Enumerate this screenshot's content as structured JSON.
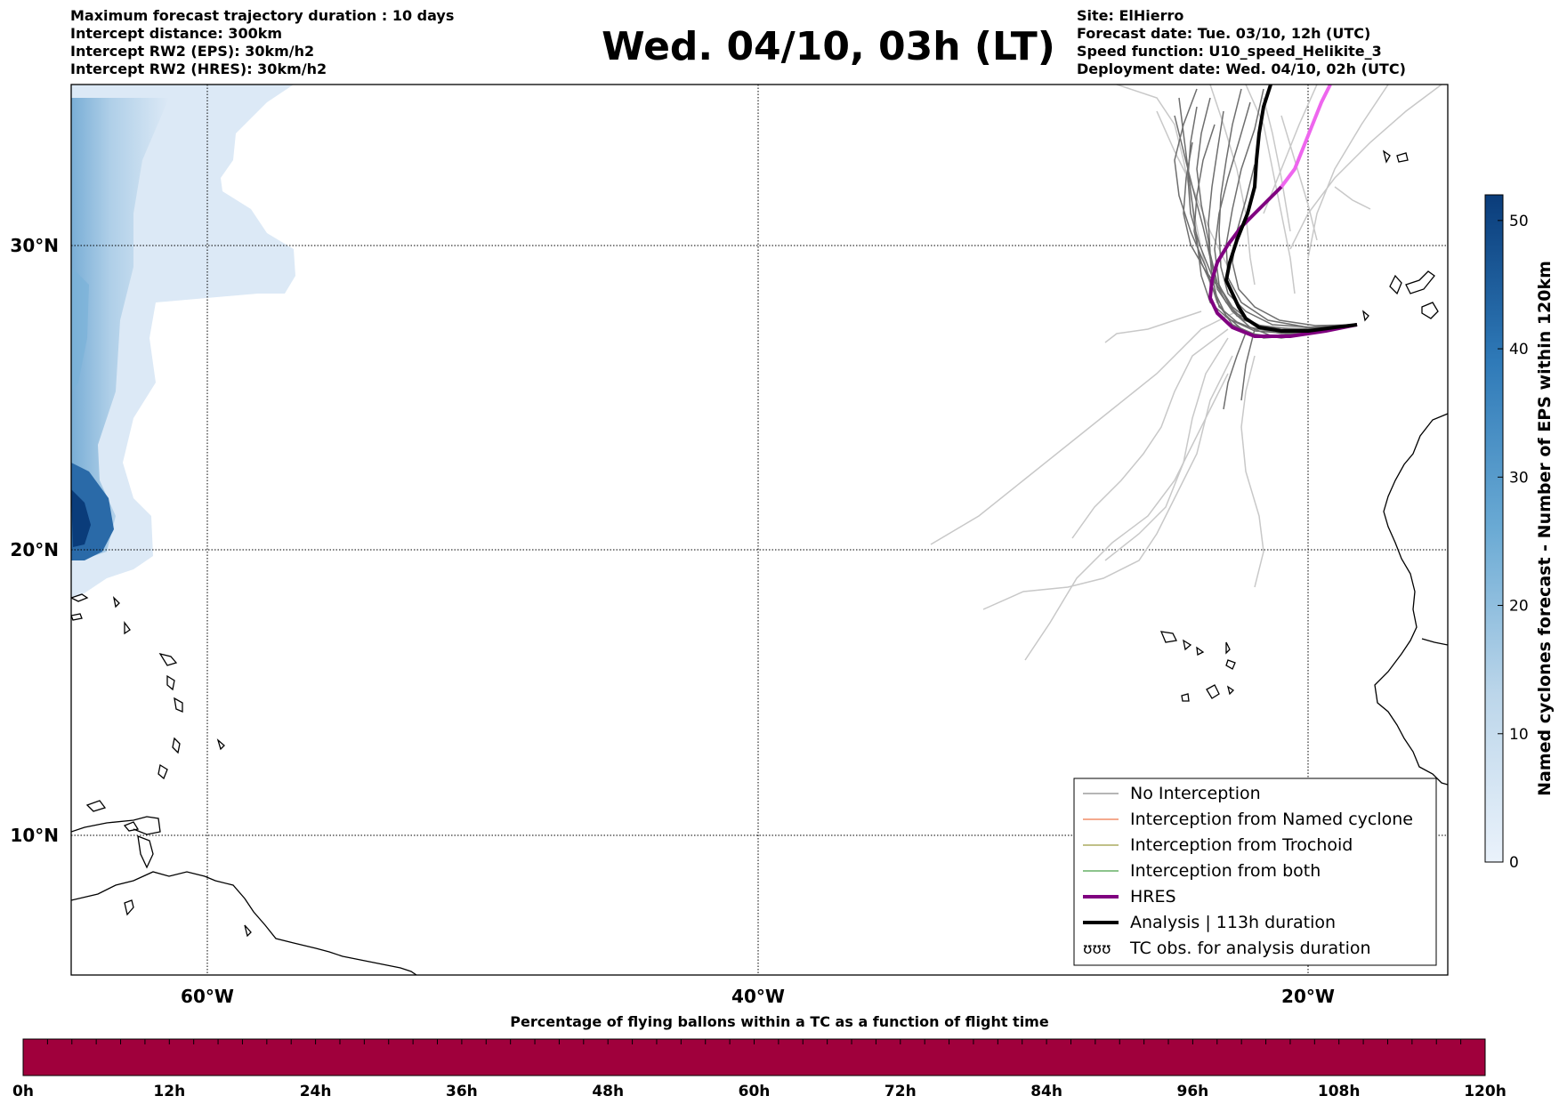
{
  "header": {
    "left": [
      "Maximum forecast trajectory duration : 10 days",
      "Intercept distance: 300km",
      "Intercept RW2 (EPS):  30km/h2",
      "Intercept RW2 (HRES): 30km/h2"
    ],
    "title": "Wed. 04/10, 03h (LT)",
    "right": [
      "Site: ElHierro",
      "Forecast date: Tue. 03/10, 12h (UTC)",
      "Speed function: U10_speed_Helikite_3",
      "Deployment date: Wed. 04/10, 02h (UTC)"
    ]
  },
  "map": {
    "lon_labels": [
      "60°W",
      "40°W",
      "20°W"
    ],
    "lat_labels": [
      "30°N",
      "20°N",
      "10°N"
    ],
    "colors": {
      "hres": "#800080",
      "hres_light": "#ee66ee",
      "analysis": "#000000",
      "eps": "#6e6e6e",
      "eps_light": "#c8c8c8"
    }
  },
  "legend": [
    {
      "label": "No Interception",
      "color": "#6e6e6e",
      "width": 1
    },
    {
      "label": "Interception from Named cyclone",
      "color": "#e8541c",
      "width": 1
    },
    {
      "label": "Interception from Trochoid",
      "color": "#808010",
      "width": 1
    },
    {
      "label": "Interception from both",
      "color": "#1a8a1a",
      "width": 1
    },
    {
      "label": "HRES",
      "color": "#800080",
      "width": 4
    },
    {
      "label": "Analysis | 113h duration",
      "color": "#000000",
      "width": 4
    },
    {
      "label": "TC obs. for analysis duration",
      "color": "#000000",
      "width": 0,
      "icon": "cyclone-symbols-icon"
    }
  ],
  "colorbar": {
    "label": "Named cyclones forecast - Number of EPS within 120km",
    "ticks": [
      "0",
      "10",
      "20",
      "30",
      "40",
      "50"
    ],
    "min": 0,
    "max": 52
  },
  "timebar": {
    "title": "Percentage of flying ballons within a TC as a function of flight time",
    "ticks": [
      "0h",
      "12h",
      "24h",
      "36h",
      "48h",
      "60h",
      "72h",
      "84h",
      "96h",
      "108h",
      "120h"
    ],
    "color": "#a0003c"
  }
}
